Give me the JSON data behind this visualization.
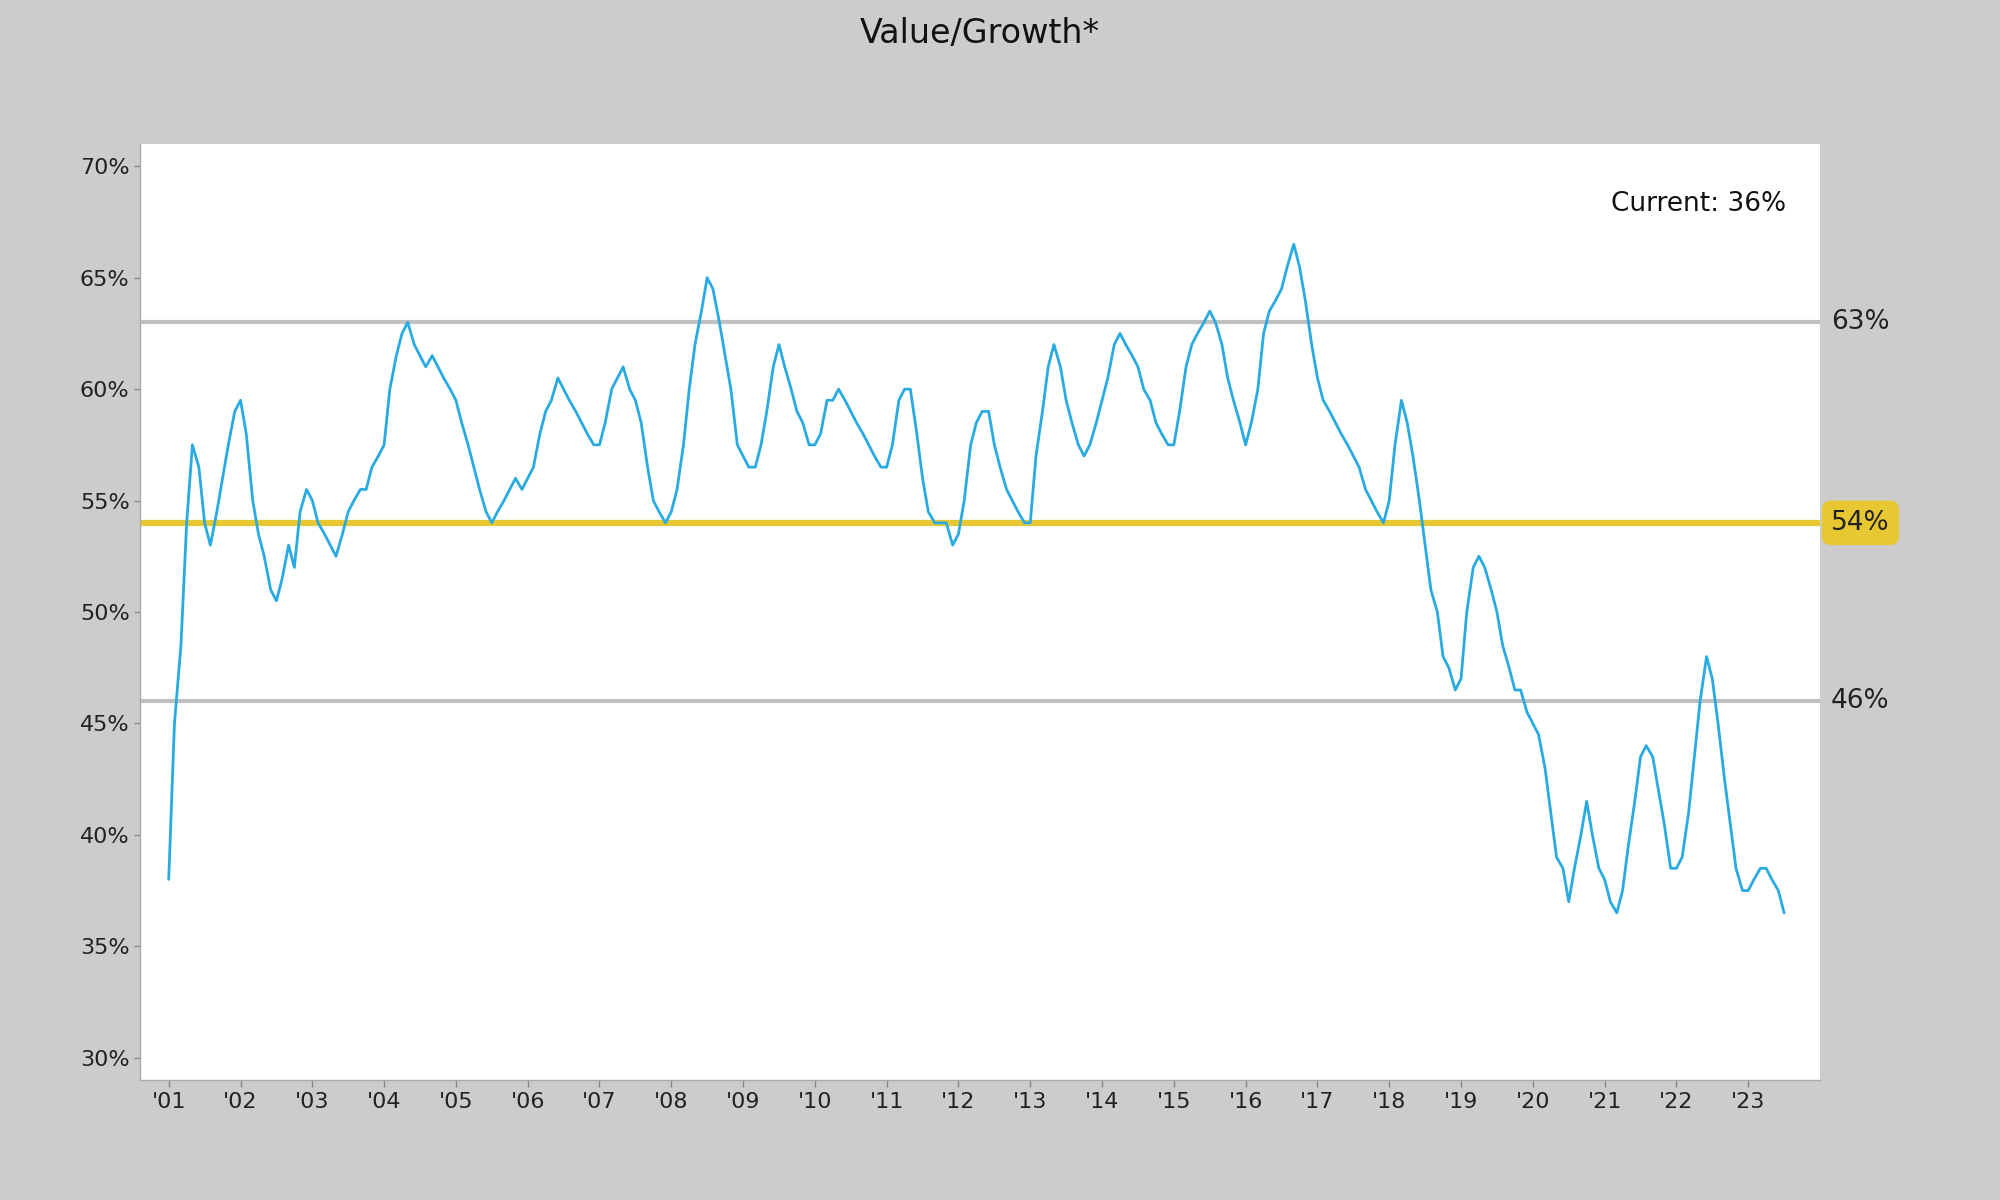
{
  "title": "Value/Growth*",
  "current_label": "Current: 36%",
  "mean_line": 54,
  "upper_band": 63,
  "lower_band": 46,
  "mean_color": "#E8C832",
  "band_color": "#C0C0C0",
  "line_color": "#29ABE2",
  "ylim": [
    29,
    71
  ],
  "yticks": [
    30,
    35,
    40,
    45,
    50,
    55,
    60,
    65,
    70
  ],
  "ytick_labels": [
    "30%",
    "35%",
    "40%",
    "45%",
    "50%",
    "55%",
    "60%",
    "65%",
    "70%"
  ],
  "background_color": "#FFFFFF",
  "outer_bg_color": "#CCCCCC",
  "card_bg_color": "#FFFFFF",
  "title_fontsize": 24,
  "annotation_fontsize": 19,
  "tick_fontsize": 16,
  "series": {
    "x": [
      2001.0,
      2001.08,
      2001.17,
      2001.25,
      2001.33,
      2001.42,
      2001.5,
      2001.58,
      2001.67,
      2001.75,
      2001.83,
      2001.92,
      2002.0,
      2002.08,
      2002.17,
      2002.25,
      2002.33,
      2002.42,
      2002.5,
      2002.58,
      2002.67,
      2002.75,
      2002.83,
      2002.92,
      2003.0,
      2003.08,
      2003.17,
      2003.25,
      2003.33,
      2003.42,
      2003.5,
      2003.58,
      2003.67,
      2003.75,
      2003.83,
      2003.92,
      2004.0,
      2004.08,
      2004.17,
      2004.25,
      2004.33,
      2004.42,
      2004.5,
      2004.58,
      2004.67,
      2004.75,
      2004.83,
      2004.92,
      2005.0,
      2005.08,
      2005.17,
      2005.25,
      2005.33,
      2005.42,
      2005.5,
      2005.58,
      2005.67,
      2005.75,
      2005.83,
      2005.92,
      2006.0,
      2006.08,
      2006.17,
      2006.25,
      2006.33,
      2006.42,
      2006.5,
      2006.58,
      2006.67,
      2006.75,
      2006.83,
      2006.92,
      2007.0,
      2007.08,
      2007.17,
      2007.25,
      2007.33,
      2007.42,
      2007.5,
      2007.58,
      2007.67,
      2007.75,
      2007.83,
      2007.92,
      2008.0,
      2008.08,
      2008.17,
      2008.25,
      2008.33,
      2008.42,
      2008.5,
      2008.58,
      2008.67,
      2008.75,
      2008.83,
      2008.92,
      2009.0,
      2009.08,
      2009.17,
      2009.25,
      2009.33,
      2009.42,
      2009.5,
      2009.58,
      2009.67,
      2009.75,
      2009.83,
      2009.92,
      2010.0,
      2010.08,
      2010.17,
      2010.25,
      2010.33,
      2010.42,
      2010.5,
      2010.58,
      2010.67,
      2010.75,
      2010.83,
      2010.92,
      2011.0,
      2011.08,
      2011.17,
      2011.25,
      2011.33,
      2011.42,
      2011.5,
      2011.58,
      2011.67,
      2011.75,
      2011.83,
      2011.92,
      2012.0,
      2012.08,
      2012.17,
      2012.25,
      2012.33,
      2012.42,
      2012.5,
      2012.58,
      2012.67,
      2012.75,
      2012.83,
      2012.92,
      2013.0,
      2013.08,
      2013.17,
      2013.25,
      2013.33,
      2013.42,
      2013.5,
      2013.58,
      2013.67,
      2013.75,
      2013.83,
      2013.92,
      2014.0,
      2014.08,
      2014.17,
      2014.25,
      2014.33,
      2014.42,
      2014.5,
      2014.58,
      2014.67,
      2014.75,
      2014.83,
      2014.92,
      2015.0,
      2015.08,
      2015.17,
      2015.25,
      2015.33,
      2015.42,
      2015.5,
      2015.58,
      2015.67,
      2015.75,
      2015.83,
      2015.92,
      2016.0,
      2016.08,
      2016.17,
      2016.25,
      2016.33,
      2016.42,
      2016.5,
      2016.58,
      2016.67,
      2016.75,
      2016.83,
      2016.92,
      2017.0,
      2017.08,
      2017.17,
      2017.25,
      2017.33,
      2017.42,
      2017.5,
      2017.58,
      2017.67,
      2017.75,
      2017.83,
      2017.92,
      2018.0,
      2018.08,
      2018.17,
      2018.25,
      2018.33,
      2018.42,
      2018.5,
      2018.58,
      2018.67,
      2018.75,
      2018.83,
      2018.92,
      2019.0,
      2019.08,
      2019.17,
      2019.25,
      2019.33,
      2019.42,
      2019.5,
      2019.58,
      2019.67,
      2019.75,
      2019.83,
      2019.92,
      2020.0,
      2020.08,
      2020.17,
      2020.25,
      2020.33,
      2020.42,
      2020.5,
      2020.58,
      2020.67,
      2020.75,
      2020.83,
      2020.92,
      2021.0,
      2021.08,
      2021.17,
      2021.25,
      2021.33,
      2021.42,
      2021.5,
      2021.58,
      2021.67,
      2021.75,
      2021.83,
      2021.92,
      2022.0,
      2022.08,
      2022.17,
      2022.25,
      2022.33,
      2022.42,
      2022.5,
      2022.58,
      2022.67,
      2022.75,
      2022.83,
      2022.92,
      2023.0,
      2023.08,
      2023.17,
      2023.25,
      2023.33,
      2023.42,
      2023.5
    ],
    "y": [
      38.0,
      45.0,
      48.5,
      54.0,
      57.5,
      56.5,
      54.0,
      53.0,
      54.5,
      56.0,
      57.5,
      59.0,
      59.5,
      58.0,
      55.0,
      53.5,
      52.5,
      51.0,
      50.5,
      51.5,
      53.0,
      52.0,
      54.5,
      55.5,
      55.0,
      54.0,
      53.5,
      53.0,
      52.5,
      53.5,
      54.5,
      55.0,
      55.5,
      55.5,
      56.5,
      57.0,
      57.5,
      60.0,
      61.5,
      62.5,
      63.0,
      62.0,
      61.5,
      61.0,
      61.5,
      61.0,
      60.5,
      60.0,
      59.5,
      58.5,
      57.5,
      56.5,
      55.5,
      54.5,
      54.0,
      54.5,
      55.0,
      55.5,
      56.0,
      55.5,
      56.0,
      56.5,
      58.0,
      59.0,
      59.5,
      60.5,
      60.0,
      59.5,
      59.0,
      58.5,
      58.0,
      57.5,
      57.5,
      58.5,
      60.0,
      60.5,
      61.0,
      60.0,
      59.5,
      58.5,
      56.5,
      55.0,
      54.5,
      54.0,
      54.5,
      55.5,
      57.5,
      60.0,
      62.0,
      63.5,
      65.0,
      64.5,
      63.0,
      61.5,
      60.0,
      57.5,
      57.0,
      56.5,
      56.5,
      57.5,
      59.0,
      61.0,
      62.0,
      61.0,
      60.0,
      59.0,
      58.5,
      57.5,
      57.5,
      58.0,
      59.5,
      59.5,
      60.0,
      59.5,
      59.0,
      58.5,
      58.0,
      57.5,
      57.0,
      56.5,
      56.5,
      57.5,
      59.5,
      60.0,
      60.0,
      58.0,
      56.0,
      54.5,
      54.0,
      54.0,
      54.0,
      53.0,
      53.5,
      55.0,
      57.5,
      58.5,
      59.0,
      59.0,
      57.5,
      56.5,
      55.5,
      55.0,
      54.5,
      54.0,
      54.0,
      57.0,
      59.0,
      61.0,
      62.0,
      61.0,
      59.5,
      58.5,
      57.5,
      57.0,
      57.5,
      58.5,
      59.5,
      60.5,
      62.0,
      62.5,
      62.0,
      61.5,
      61.0,
      60.0,
      59.5,
      58.5,
      58.0,
      57.5,
      57.5,
      59.0,
      61.0,
      62.0,
      62.5,
      63.0,
      63.5,
      63.0,
      62.0,
      60.5,
      59.5,
      58.5,
      57.5,
      58.5,
      60.0,
      62.5,
      63.5,
      64.0,
      64.5,
      65.5,
      66.5,
      65.5,
      64.0,
      62.0,
      60.5,
      59.5,
      59.0,
      58.5,
      58.0,
      57.5,
      57.0,
      56.5,
      55.5,
      55.0,
      54.5,
      54.0,
      55.0,
      57.5,
      59.5,
      58.5,
      57.0,
      55.0,
      53.0,
      51.0,
      50.0,
      48.0,
      47.5,
      46.5,
      47.0,
      50.0,
      52.0,
      52.5,
      52.0,
      51.0,
      50.0,
      48.5,
      47.5,
      46.5,
      46.5,
      45.5,
      45.0,
      44.5,
      43.0,
      41.0,
      39.0,
      38.5,
      37.0,
      38.5,
      40.0,
      41.5,
      40.0,
      38.5,
      38.0,
      37.0,
      36.5,
      37.5,
      39.5,
      41.5,
      43.5,
      44.0,
      43.5,
      42.0,
      40.5,
      38.5,
      38.5,
      39.0,
      41.0,
      43.5,
      46.0,
      48.0,
      47.0,
      45.0,
      42.5,
      40.5,
      38.5,
      37.5,
      37.5,
      38.0,
      38.5,
      38.5,
      38.0,
      37.5,
      36.5
    ]
  }
}
